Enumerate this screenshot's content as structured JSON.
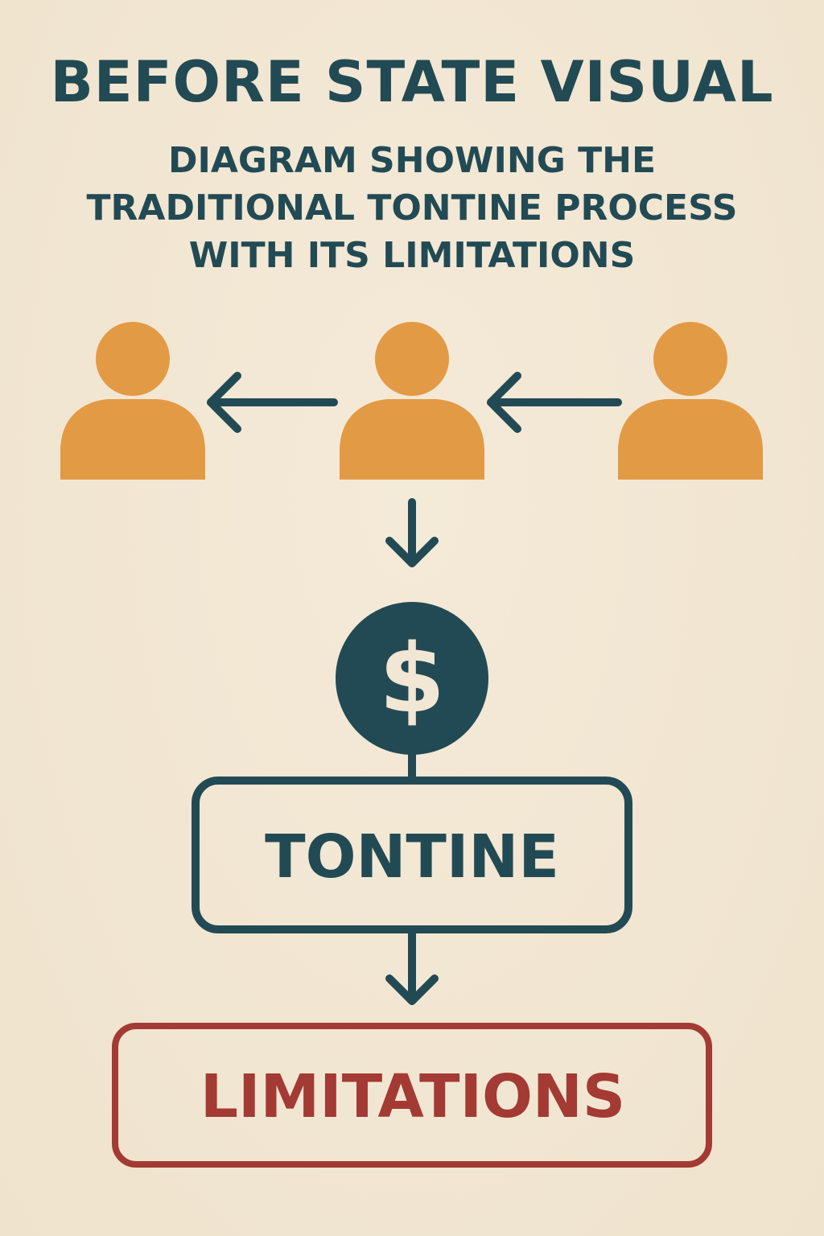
{
  "header": {
    "title": "BEFORE STATE VISUAL",
    "subtitle_lines": [
      "DIAGRAM SHOWING THE",
      "TRADITIONAL TONTINE PROCESS",
      "WITH ITS LIMITATIONS"
    ]
  },
  "diagram": {
    "participants": [
      {
        "icon": "person-icon"
      },
      {
        "icon": "person-icon"
      },
      {
        "icon": "person-icon"
      }
    ],
    "pool_symbol": "$",
    "process_label": "TONTINE",
    "outcome_label": "LIMITATIONS"
  },
  "colors": {
    "background": "#f2e7d4",
    "primary": "#224a54",
    "person": "#e39a45",
    "limitations": "#a33a33"
  }
}
